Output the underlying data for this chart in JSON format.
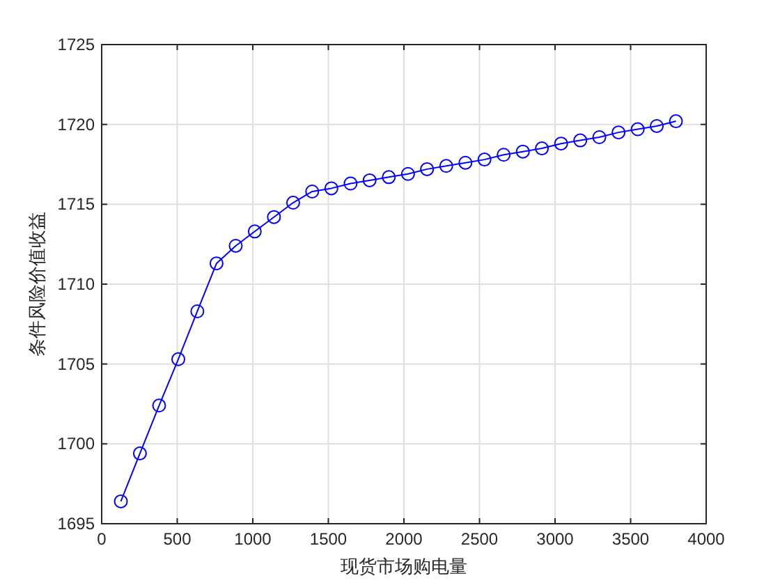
{
  "chart_data": {
    "type": "line",
    "xlabel": "现货市场购电量",
    "ylabel": "条件风险价值收益",
    "x": [
      127,
      253,
      380,
      507,
      633,
      760,
      887,
      1013,
      1140,
      1267,
      1393,
      1520,
      1647,
      1773,
      1900,
      2027,
      2153,
      2280,
      2407,
      2533,
      2660,
      2787,
      2913,
      3040,
      3167,
      3293,
      3420,
      3547,
      3673,
      3800
    ],
    "series": [
      {
        "color": "#0000ff",
        "values": [
          1696.4,
          1699.4,
          1702.4,
          1705.3,
          1708.3,
          1711.3,
          1712.4,
          1713.3,
          1714.2,
          1715.1,
          1715.8,
          1716.0,
          1716.3,
          1716.5,
          1716.7,
          1716.9,
          1717.2,
          1717.4,
          1717.6,
          1717.8,
          1718.1,
          1718.3,
          1718.5,
          1718.8,
          1719.0,
          1719.2,
          1719.5,
          1719.7,
          1719.9,
          1720.2
        ]
      }
    ],
    "xlim": [
      0,
      4000
    ],
    "xticks": [
      0,
      500,
      1000,
      1500,
      2000,
      2500,
      3000,
      3500,
      4000
    ],
    "ylim": [
      1695,
      1725
    ],
    "yticks": [
      1695,
      1700,
      1705,
      1710,
      1715,
      1720,
      1725
    ],
    "grid": true,
    "marker": "circle",
    "line_style": "solid"
  }
}
